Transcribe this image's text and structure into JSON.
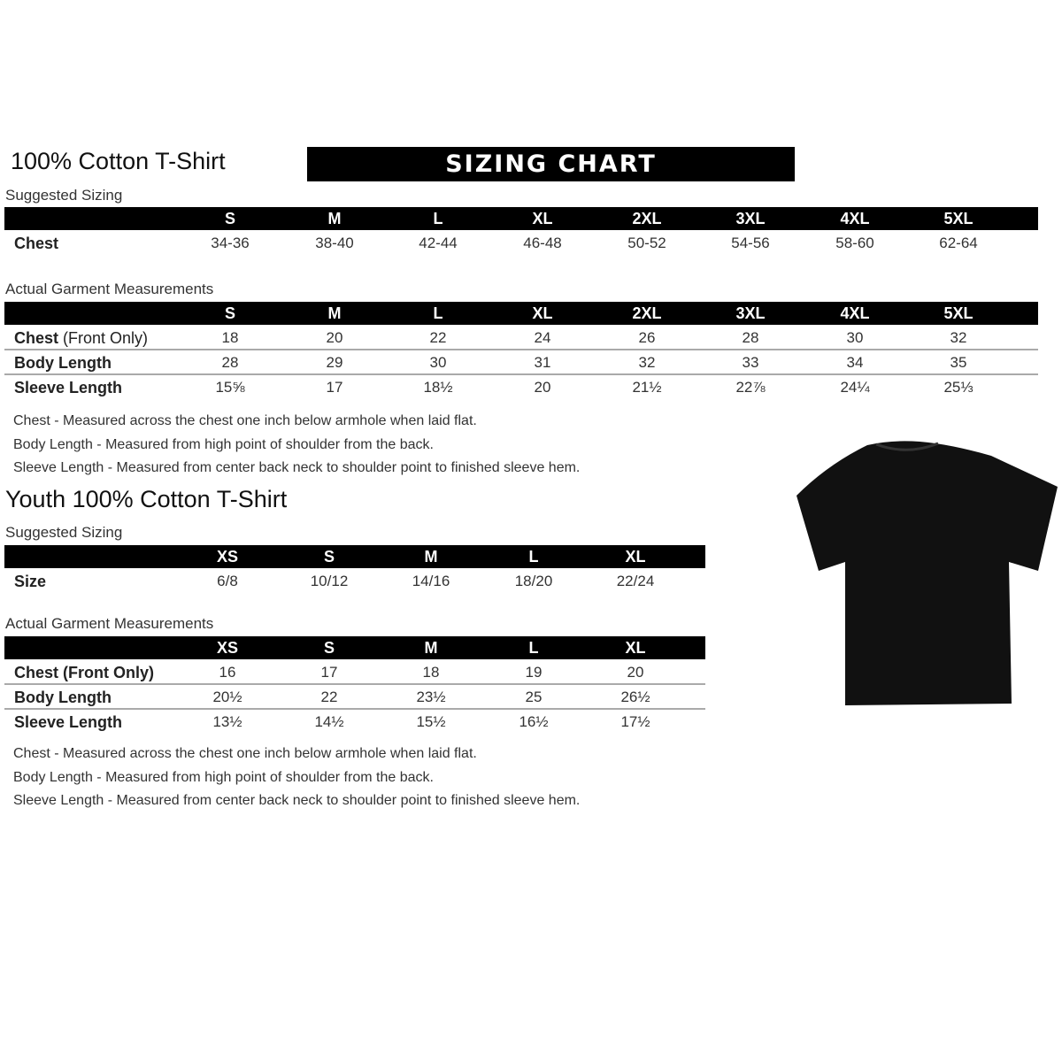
{
  "adult": {
    "title": "100% Cotton T-Shirt",
    "banner": "SIZING CHART",
    "suggested_label": "Suggested Sizing",
    "sizes": [
      "S",
      "M",
      "L",
      "XL",
      "2XL",
      "3XL",
      "4XL",
      "5XL"
    ],
    "suggested_rows": [
      {
        "label": "Chest",
        "values": [
          "34-36",
          "38-40",
          "42-44",
          "46-48",
          "50-52",
          "54-56",
          "58-60",
          "62-64"
        ]
      }
    ],
    "actual_label": "Actual Garment Measurements",
    "actual_rows": [
      {
        "label": "Chest",
        "label_suffix": "(Front Only)",
        "values": [
          "18",
          "20",
          "22",
          "24",
          "26",
          "28",
          "30",
          "32"
        ]
      },
      {
        "label": "Body Length",
        "label_suffix": "",
        "values": [
          "28",
          "29",
          "30",
          "31",
          "32",
          "33",
          "34",
          "35"
        ]
      },
      {
        "label": "Sleeve Length",
        "label_suffix": "",
        "values": [
          "15⅝",
          "17",
          "18½",
          "20",
          "21½",
          "22⅞",
          "24¼",
          "25⅓"
        ]
      }
    ],
    "notes": [
      "Chest - Measured across the chest one inch below armhole when laid flat.",
      "Body Length - Measured from high point of shoulder from the back.",
      "Sleeve Length - Measured from center back neck to shoulder point to finished sleeve hem."
    ]
  },
  "youth": {
    "title": "Youth 100% Cotton T-Shirt",
    "suggested_label": "Suggested Sizing",
    "sizes": [
      "XS",
      "S",
      "M",
      "L",
      "XL"
    ],
    "suggested_rows": [
      {
        "label": "Size",
        "values": [
          "6/8",
          "10/12",
          "14/16",
          "18/20",
          "22/24"
        ]
      }
    ],
    "actual_label": "Actual Garment Measurements",
    "actual_rows": [
      {
        "label": "Chest (Front Only)",
        "values": [
          "16",
          "17",
          "18",
          "19",
          "20"
        ]
      },
      {
        "label": "Body Length",
        "values": [
          "20½",
          "22",
          "23½",
          "25",
          "26½"
        ]
      },
      {
        "label": "Sleeve Length",
        "values": [
          "13½",
          "14½",
          "15½",
          "16½",
          "17½"
        ]
      }
    ],
    "notes": [
      "Chest - Measured across the chest one inch below armhole when laid flat.",
      "Body Length - Measured from high point of shoulder from the back.",
      "Sleeve Length - Measured from center back neck to shoulder point to finished sleeve hem."
    ]
  },
  "image": {
    "shirt_color": "#111111"
  }
}
